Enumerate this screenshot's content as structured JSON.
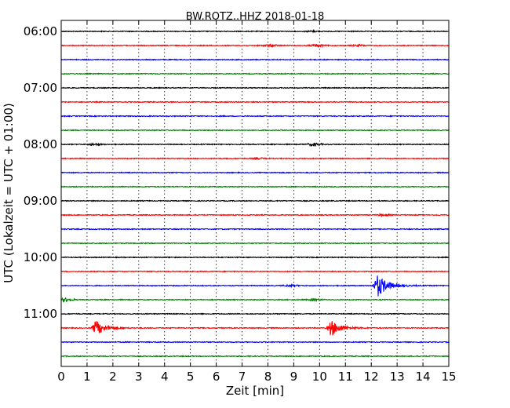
{
  "chart_data": {
    "type": "line",
    "title": "BW.ROTZ..HHZ 2018-01-18",
    "xlabel": "Zeit  [min]",
    "ylabel": "UTC (Lokalzeit = UTC + 01:00)",
    "xlim": [
      0,
      15
    ],
    "x_ticks": [
      "0",
      "1",
      "2",
      "3",
      "4",
      "5",
      "6",
      "7",
      "8",
      "9",
      "10",
      "11",
      "12",
      "13",
      "14",
      "15"
    ],
    "y_ticks": [
      "06:00",
      "07:00",
      "08:00",
      "09:00",
      "10:00",
      "11:00"
    ],
    "start_hour": 6,
    "trace_interval_minutes": 15,
    "colors": [
      "#000000",
      "#ff0000",
      "#0000ff",
      "#008000"
    ],
    "grid": "vertical-dotted",
    "traces": [
      {
        "start": "06:00",
        "events": [
          {
            "t": 9.7,
            "amp": 0.7
          }
        ]
      },
      {
        "start": "06:15",
        "events": [
          {
            "t": 8.1,
            "amp": 1.2
          },
          {
            "t": 9.9,
            "amp": 1.4
          },
          {
            "t": 11.5,
            "amp": 0.8
          }
        ]
      },
      {
        "start": "06:30",
        "events": []
      },
      {
        "start": "06:45",
        "events": []
      },
      {
        "start": "07:00",
        "events": []
      },
      {
        "start": "07:15",
        "events": []
      },
      {
        "start": "07:30",
        "events": []
      },
      {
        "start": "07:45",
        "events": []
      },
      {
        "start": "08:00",
        "events": [
          {
            "t": 1.3,
            "amp": 1.0
          },
          {
            "t": 9.8,
            "amp": 1.6
          }
        ]
      },
      {
        "start": "08:15",
        "events": [
          {
            "t": 7.6,
            "amp": 0.7
          }
        ]
      },
      {
        "start": "08:30",
        "events": []
      },
      {
        "start": "08:45",
        "events": []
      },
      {
        "start": "09:00",
        "events": []
      },
      {
        "start": "09:15",
        "events": [
          {
            "t": 12.5,
            "amp": 1.0
          }
        ]
      },
      {
        "start": "09:30",
        "events": []
      },
      {
        "start": "09:45",
        "events": []
      },
      {
        "start": "10:00",
        "events": []
      },
      {
        "start": "10:15",
        "events": []
      },
      {
        "start": "10:30",
        "events": [
          {
            "t": 8.9,
            "amp": 1.0
          },
          {
            "t": 12.25,
            "amp": 14
          }
        ]
      },
      {
        "start": "10:45",
        "events": [
          {
            "t": 0.2,
            "amp": 2.0
          },
          {
            "t": 9.8,
            "amp": 1.2
          }
        ]
      },
      {
        "start": "11:00",
        "events": []
      },
      {
        "start": "11:15",
        "events": [
          {
            "t": 1.35,
            "amp": 9
          },
          {
            "t": 10.45,
            "amp": 10
          }
        ]
      },
      {
        "start": "11:30",
        "events": []
      },
      {
        "start": "11:45",
        "events": []
      }
    ]
  }
}
